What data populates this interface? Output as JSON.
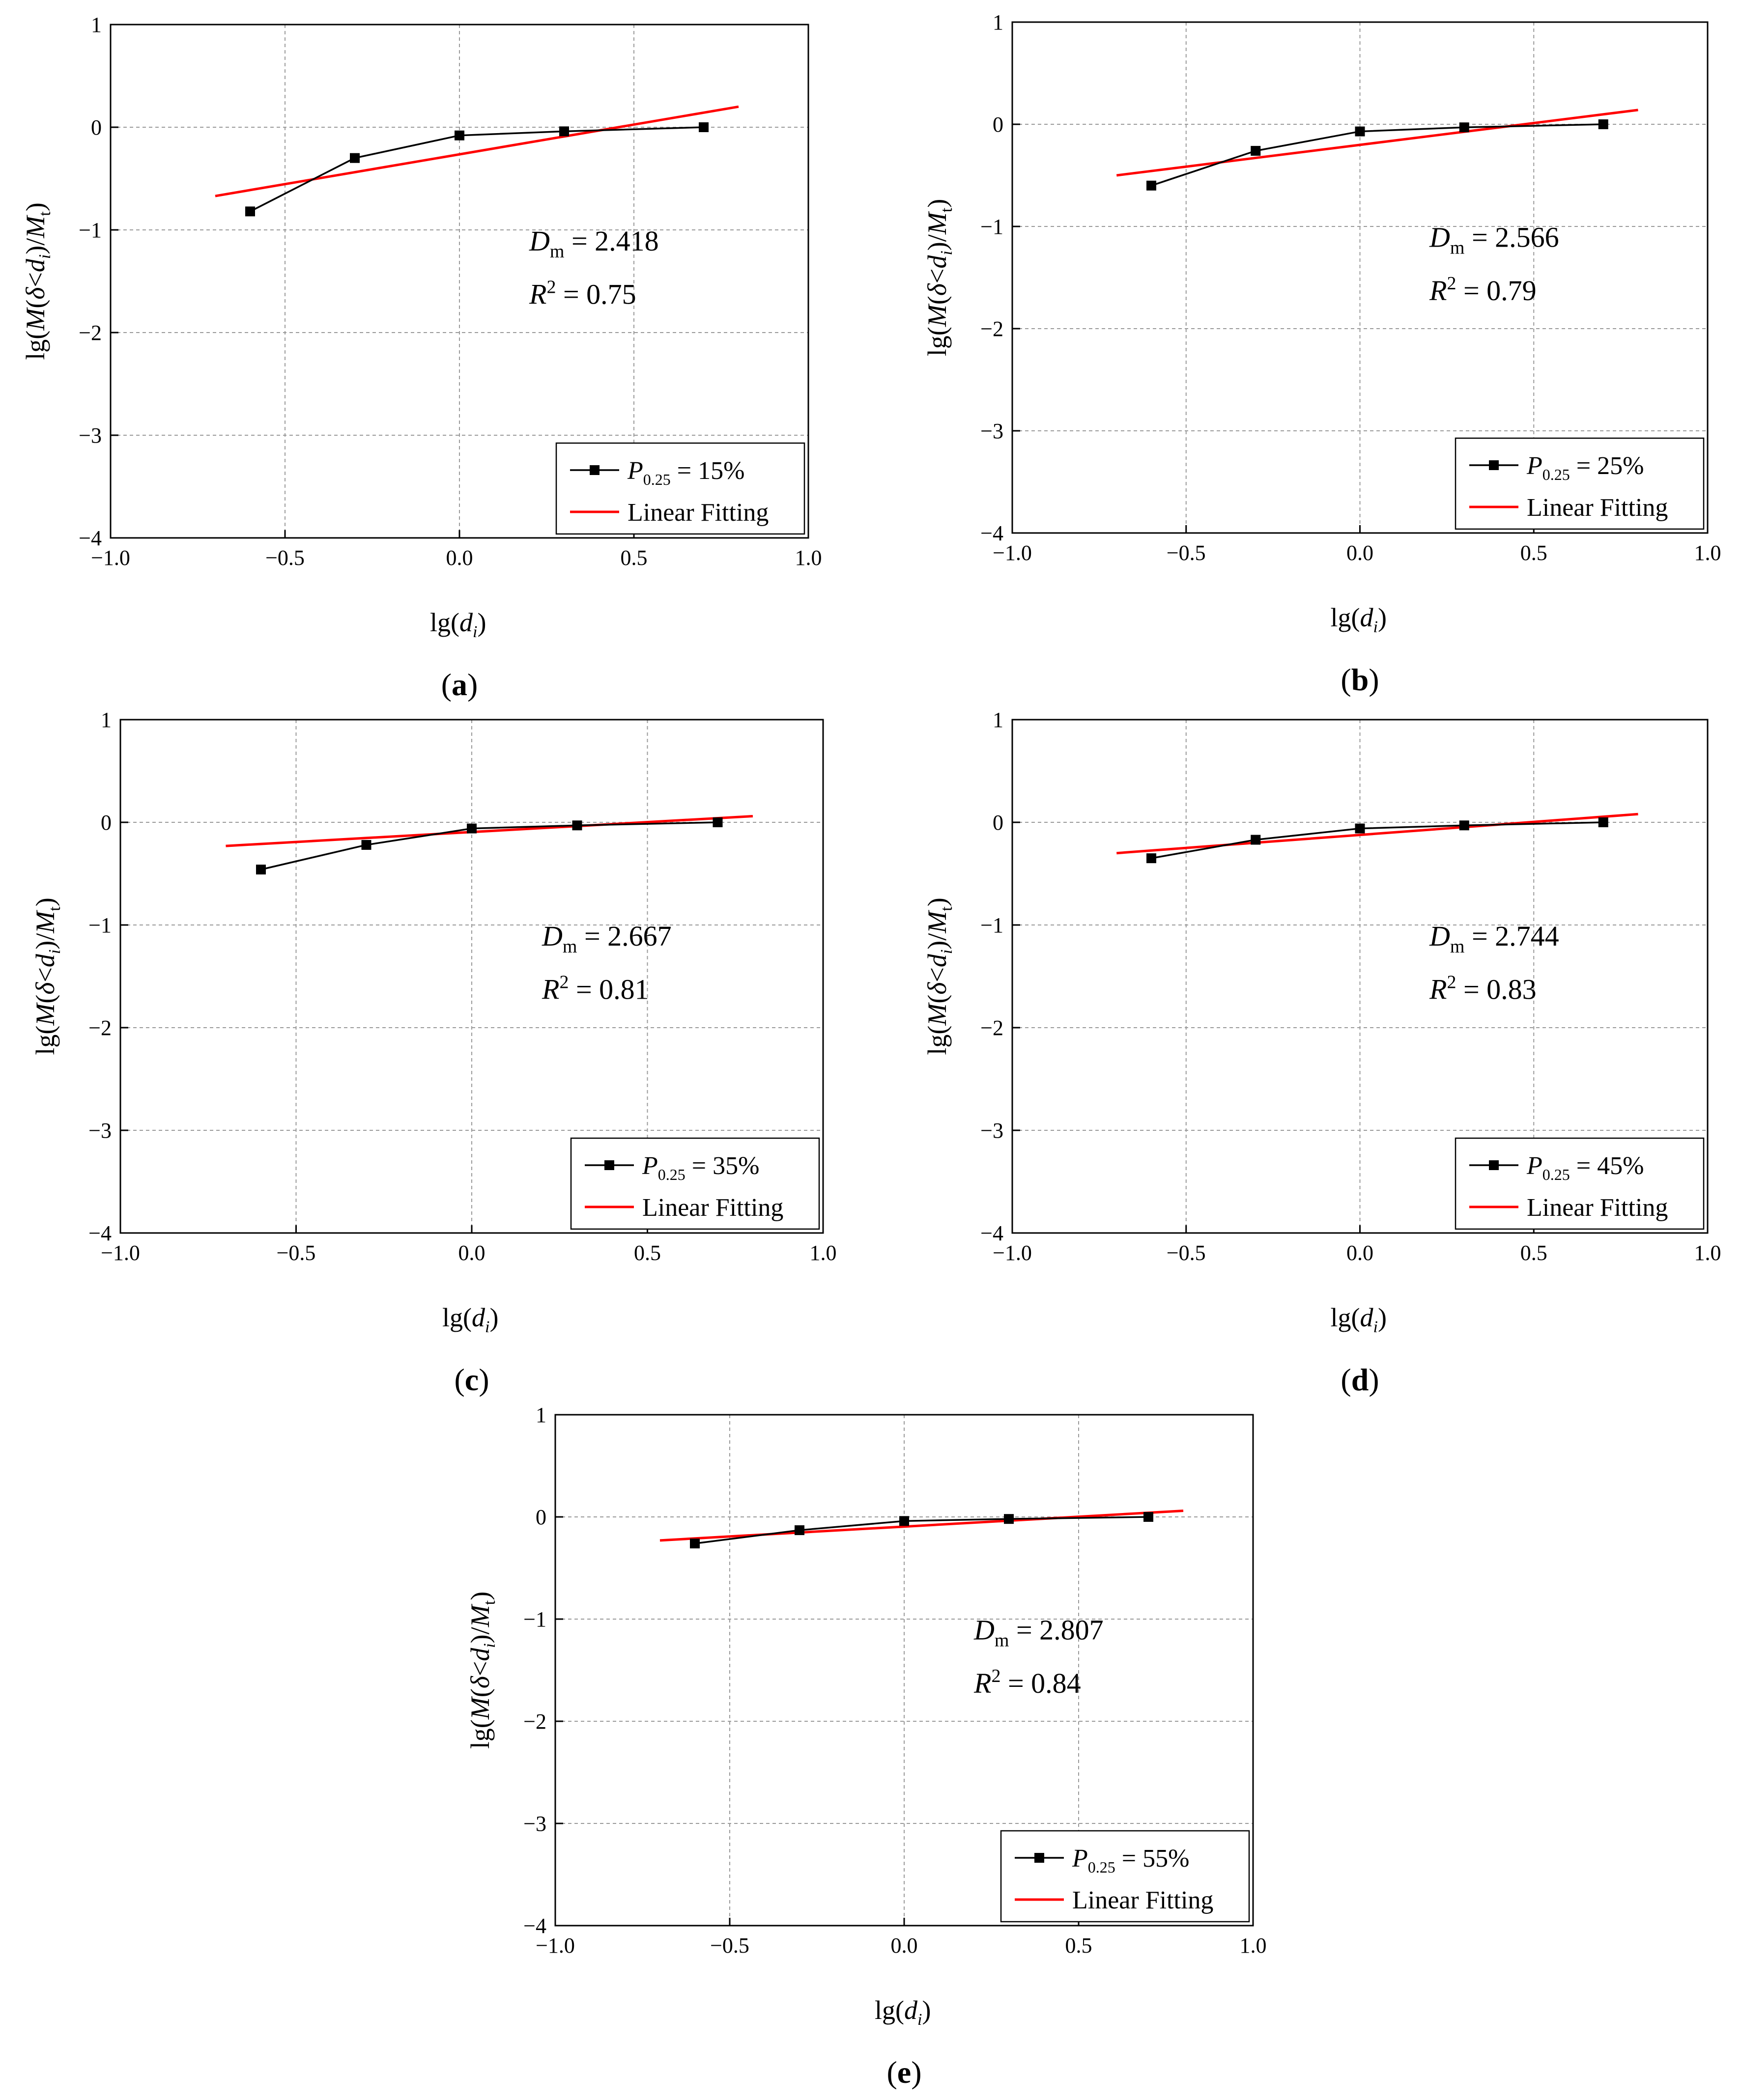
{
  "figure": {
    "axis_common": {
      "xlim": [
        -1.0,
        1.0
      ],
      "ylim": [
        -4,
        1
      ],
      "xticks": [
        "−1.0",
        "−0.5",
        "0.0",
        "0.5",
        "1.0"
      ],
      "yticks": [
        "1",
        "0",
        "−1",
        "−2",
        "−3",
        "−4"
      ],
      "xlabel": {
        "main": "lg(",
        "var": "d",
        "sub": "i",
        "close": ")"
      },
      "ylabel": {
        "pre": "lg(",
        "M": "M",
        "open": "(",
        "delta": "δ",
        "lt": "<",
        "d": "d",
        "sub_i": "i",
        "mid": ")/",
        "Mt": "M",
        "sub_t": "t",
        "close": ")"
      },
      "grid": true
    },
    "legend_common": {
      "p_symbol": "P",
      "p_subscript": "0.25",
      "eq": " = ",
      "fit_label": "Linear Fitting"
    },
    "annotation_common": {
      "d_symbol": "D",
      "d_subscript": "m",
      "r_symbol": "R",
      "r_superscript": "2",
      "eq": " = "
    },
    "colors": {
      "data": "#000000",
      "fit": "#ff0000",
      "grid": "#9a9a9a"
    }
  },
  "chart_data": [
    {
      "type": "line",
      "panel": "a",
      "panel_label": {
        "open": "(",
        "letter": "a",
        "close": ")"
      },
      "x": [
        -0.6,
        -0.3,
        0.0,
        0.3,
        0.7
      ],
      "y": [
        -0.82,
        -0.3,
        -0.08,
        -0.04,
        0.0
      ],
      "series_name": "15%",
      "fit": {
        "x": [
          -0.7,
          0.8
        ],
        "y": [
          -0.67,
          0.2
        ]
      },
      "Dm": "2.418",
      "R2": "0.75"
    },
    {
      "type": "line",
      "panel": "b",
      "panel_label": {
        "open": "(",
        "letter": "b",
        "close": ")"
      },
      "x": [
        -0.6,
        -0.3,
        0.0,
        0.3,
        0.7
      ],
      "y": [
        -0.6,
        -0.26,
        -0.07,
        -0.03,
        0.0
      ],
      "series_name": "25%",
      "fit": {
        "x": [
          -0.7,
          0.8
        ],
        "y": [
          -0.5,
          0.14
        ]
      },
      "Dm": "2.566",
      "R2": "0.79"
    },
    {
      "type": "line",
      "panel": "c",
      "panel_label": {
        "open": "(",
        "letter": "c",
        "close": ")"
      },
      "x": [
        -0.6,
        -0.3,
        0.0,
        0.3,
        0.7
      ],
      "y": [
        -0.46,
        -0.22,
        -0.06,
        -0.03,
        0.0
      ],
      "series_name": "35%",
      "fit": {
        "x": [
          -0.7,
          0.8
        ],
        "y": [
          -0.23,
          0.06
        ]
      },
      "Dm": "2.667",
      "R2": "0.81"
    },
    {
      "type": "line",
      "panel": "d",
      "panel_label": {
        "open": "(",
        "letter": "d",
        "close": ")"
      },
      "x": [
        -0.6,
        -0.3,
        0.0,
        0.3,
        0.7
      ],
      "y": [
        -0.35,
        -0.17,
        -0.06,
        -0.03,
        0.0
      ],
      "series_name": "45%",
      "fit": {
        "x": [
          -0.7,
          0.8
        ],
        "y": [
          -0.3,
          0.08
        ]
      },
      "Dm": "2.744",
      "R2": "0.83"
    },
    {
      "type": "line",
      "panel": "e",
      "panel_label": {
        "open": "(",
        "letter": "e",
        "close": ")"
      },
      "x": [
        -0.6,
        -0.3,
        0.0,
        0.3,
        0.7
      ],
      "y": [
        -0.26,
        -0.13,
        -0.04,
        -0.02,
        0.0
      ],
      "series_name": "55%",
      "fit": {
        "x": [
          -0.7,
          0.8
        ],
        "y": [
          -0.23,
          0.06
        ]
      },
      "Dm": "2.807",
      "R2": "0.84"
    }
  ]
}
